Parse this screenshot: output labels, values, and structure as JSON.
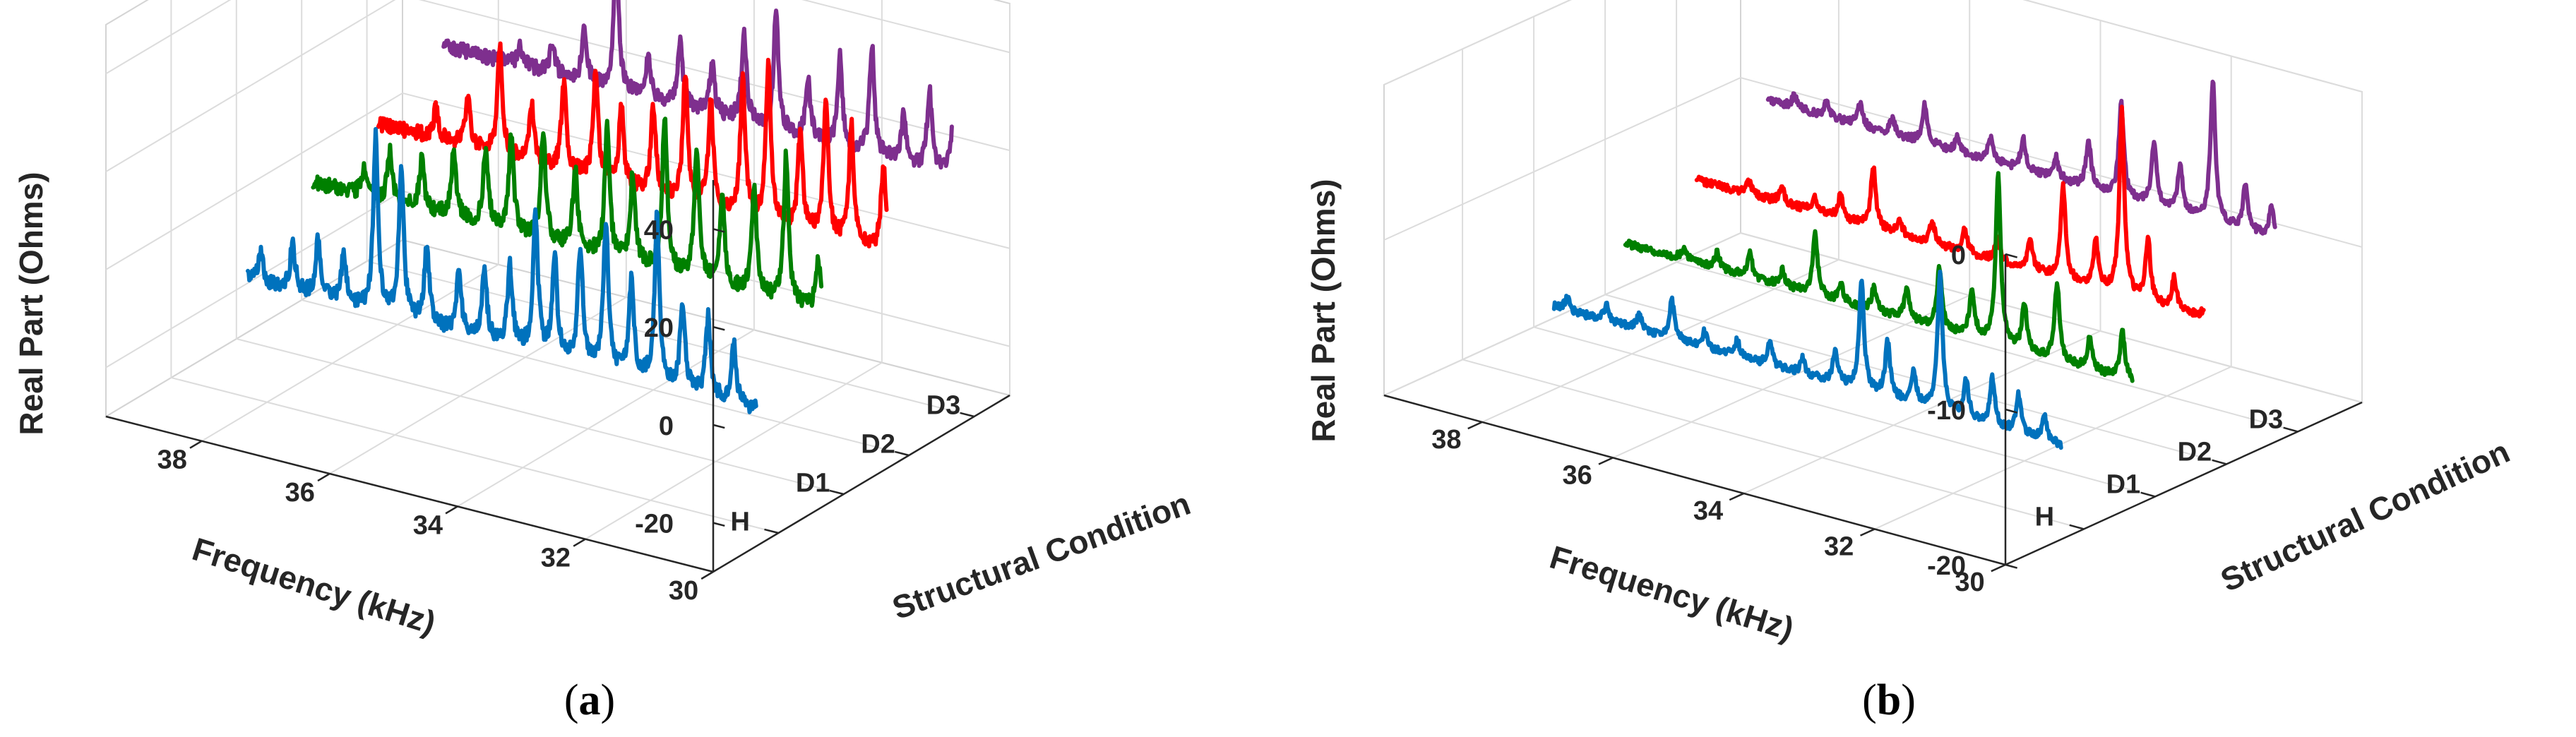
{
  "chart_data": [
    {
      "type": "line",
      "panel_label": "a",
      "xlabel": "Frequency (kHz)",
      "ylabel": "Structural Condition",
      "zlabel": "Real Part (Ohms)",
      "xlim": [
        30,
        39.5
      ],
      "xticks": [
        30,
        32,
        34,
        36,
        38
      ],
      "zlim": [
        -30,
        50
      ],
      "zticks": [
        -20,
        0,
        20,
        40
      ],
      "conditions": [
        "H",
        "D1",
        "D2",
        "D3"
      ],
      "series": [
        {
          "name": "H",
          "color": "#0072BD",
          "base": -6,
          "noise": 3,
          "peaks": [
            [
              30.7,
              12
            ],
            [
              31.1,
              16
            ],
            [
              31.5,
              18
            ],
            [
              31.9,
              34
            ],
            [
              32.3,
              20
            ],
            [
              32.7,
              30
            ],
            [
              33.1,
              24
            ],
            [
              33.5,
              20
            ],
            [
              33.8,
              28
            ],
            [
              34.2,
              16
            ],
            [
              34.6,
              14
            ],
            [
              35.0,
              12
            ],
            [
              35.5,
              16
            ],
            [
              35.9,
              30
            ],
            [
              36.3,
              36
            ],
            [
              36.8,
              10
            ],
            [
              37.2,
              12
            ],
            [
              37.6,
              10
            ],
            [
              38.1,
              6
            ]
          ]
        },
        {
          "name": "D1",
          "color": "#008000",
          "base": 6,
          "noise": 3,
          "peaks": [
            [
              30.4,
              10
            ],
            [
              30.9,
              30
            ],
            [
              31.4,
              22
            ],
            [
              31.9,
              18
            ],
            [
              32.3,
              26
            ],
            [
              32.8,
              32
            ],
            [
              33.3,
              18
            ],
            [
              33.7,
              26
            ],
            [
              34.2,
              16
            ],
            [
              34.7,
              22
            ],
            [
              35.2,
              20
            ],
            [
              35.6,
              16
            ],
            [
              36.1,
              14
            ],
            [
              36.6,
              10
            ],
            [
              37.1,
              10
            ],
            [
              37.5,
              6
            ]
          ]
        },
        {
          "name": "D2",
          "color": "#FF0000",
          "base": 10,
          "noise": 3,
          "peaks": [
            [
              30.4,
              18
            ],
            [
              30.9,
              24
            ],
            [
              31.3,
              28
            ],
            [
              31.7,
              20
            ],
            [
              32.2,
              32
            ],
            [
              32.6,
              28
            ],
            [
              33.1,
              22
            ],
            [
              33.5,
              26
            ],
            [
              34.0,
              18
            ],
            [
              34.5,
              16
            ],
            [
              34.9,
              22
            ],
            [
              35.4,
              18
            ],
            [
              35.9,
              12
            ],
            [
              36.4,
              22
            ],
            [
              36.9,
              10
            ],
            [
              37.4,
              6
            ]
          ]
        },
        {
          "name": "D3",
          "color": "#7E2F8E",
          "base": 18,
          "noise": 3,
          "peaks": [
            [
              30.3,
              20
            ],
            [
              30.7,
              16
            ],
            [
              31.1,
              10
            ],
            [
              31.6,
              22
            ],
            [
              32.1,
              18
            ],
            [
              32.6,
              12
            ],
            [
              33.1,
              24
            ],
            [
              33.6,
              18
            ],
            [
              34.1,
              10
            ],
            [
              34.6,
              14
            ],
            [
              35.1,
              8
            ],
            [
              35.6,
              28
            ],
            [
              36.1,
              10
            ],
            [
              36.6,
              6
            ],
            [
              37.1,
              4
            ]
          ]
        }
      ]
    },
    {
      "type": "line",
      "panel_label": "b",
      "xlabel": "Frequency (kHz)",
      "ylabel": "Structural Condition",
      "zlabel": "Real Part (Ohms)",
      "xlim": [
        30,
        39.5
      ],
      "xticks": [
        30,
        32,
        34,
        36,
        38
      ],
      "zlim": [
        -20,
        0
      ],
      "zticks": [
        -20,
        -10,
        0
      ],
      "conditions": [
        "H",
        "D1",
        "D2",
        "D3"
      ],
      "series": [
        {
          "name": "H",
          "color": "#0072BD",
          "base": -15,
          "noise": 0.5,
          "peaks": [
            [
              30.6,
              1.5
            ],
            [
              31.0,
              2.5
            ],
            [
              31.4,
              3
            ],
            [
              31.8,
              2.5
            ],
            [
              32.2,
              9
            ],
            [
              32.6,
              2
            ],
            [
              33.0,
              3.5
            ],
            [
              33.4,
              7
            ],
            [
              33.8,
              2
            ],
            [
              34.3,
              1
            ],
            [
              34.8,
              1.5
            ],
            [
              35.3,
              1
            ],
            [
              35.8,
              1
            ],
            [
              36.3,
              2.5
            ],
            [
              36.8,
              1
            ],
            [
              37.3,
              1
            ],
            [
              37.9,
              0.8
            ]
          ]
        },
        {
          "name": "D1",
          "color": "#008000",
          "base": -13,
          "noise": 0.5,
          "peaks": [
            [
              30.5,
              3
            ],
            [
              31.0,
              2
            ],
            [
              31.5,
              5
            ],
            [
              32.0,
              3
            ],
            [
              32.4,
              11
            ],
            [
              32.8,
              3
            ],
            [
              33.3,
              4
            ],
            [
              33.8,
              2
            ],
            [
              34.3,
              1.5
            ],
            [
              34.8,
              1
            ],
            [
              35.2,
              4
            ],
            [
              35.7,
              1
            ],
            [
              36.2,
              1.5
            ],
            [
              36.7,
              1
            ],
            [
              37.2,
              0.8
            ]
          ]
        },
        {
          "name": "D2",
          "color": "#FF0000",
          "base": -11,
          "noise": 0.5,
          "peaks": [
            [
              30.3,
              1.5
            ],
            [
              30.8,
              2
            ],
            [
              31.2,
              4
            ],
            [
              31.6,
              12
            ],
            [
              32.0,
              3
            ],
            [
              32.5,
              6
            ],
            [
              33.0,
              2
            ],
            [
              33.5,
              1.5
            ],
            [
              34.0,
              1.5
            ],
            [
              34.5,
              1.5
            ],
            [
              35.0,
              1
            ],
            [
              35.4,
              4
            ],
            [
              35.9,
              1.5
            ],
            [
              36.3,
              1
            ],
            [
              36.8,
              1
            ],
            [
              37.3,
              0.8
            ]
          ]
        },
        {
          "name": "D3",
          "color": "#7E2F8E",
          "base": -8,
          "noise": 0.5,
          "peaks": [
            [
              30.4,
              2
            ],
            [
              30.8,
              3
            ],
            [
              31.3,
              9
            ],
            [
              31.8,
              3
            ],
            [
              32.2,
              4
            ],
            [
              32.7,
              6
            ],
            [
              33.2,
              3
            ],
            [
              33.7,
              1.5
            ],
            [
              34.2,
              2
            ],
            [
              34.7,
              1.5
            ],
            [
              35.2,
              1
            ],
            [
              35.7,
              2.5
            ],
            [
              36.2,
              1
            ],
            [
              36.7,
              1.5
            ],
            [
              37.2,
              1
            ],
            [
              37.7,
              0.8
            ]
          ]
        }
      ]
    }
  ]
}
